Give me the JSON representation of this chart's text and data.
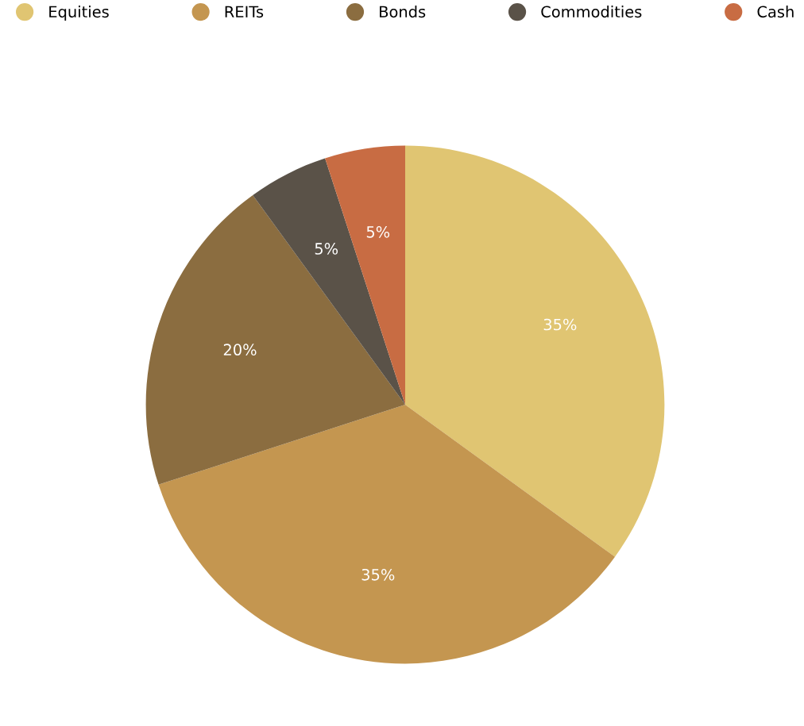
{
  "chart_data": {
    "type": "pie",
    "categories": [
      "Equities",
      "REITs",
      "Bonds",
      "Commodities",
      "Cash"
    ],
    "values": [
      35,
      35,
      20,
      5,
      5
    ],
    "colors": [
      "#e0c572",
      "#c49650",
      "#8b6d40",
      "#5a5248",
      "#c86c43"
    ],
    "value_labels": [
      "35%",
      "35%",
      "20%",
      "5%",
      "5%"
    ],
    "legend": "top"
  }
}
